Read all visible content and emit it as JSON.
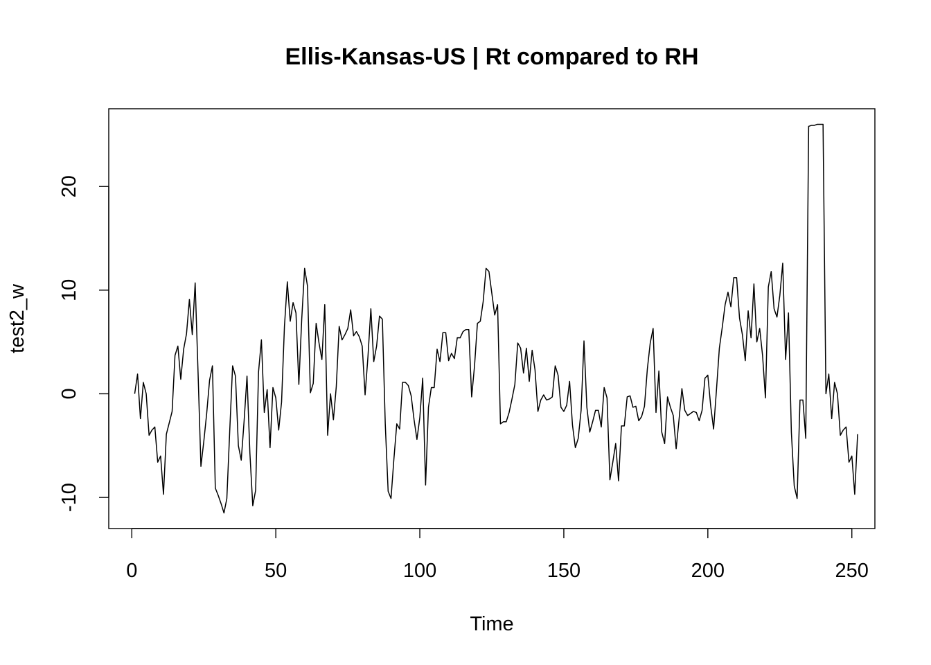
{
  "chart_data": {
    "type": "line",
    "title": "Ellis-Kansas-US | Rt compared to RH",
    "xlabel": "Time",
    "ylabel": "test2_w",
    "xlim": [
      -8,
      258
    ],
    "ylim": [
      -13,
      27.5
    ],
    "xticks": [
      0,
      50,
      100,
      150,
      200,
      250
    ],
    "yticks": [
      -10,
      0,
      10,
      20
    ],
    "grid": false,
    "legend": "none",
    "line_color": "#000000",
    "series": [
      {
        "values": [
          0.0,
          1.9,
          -2.4,
          1.1,
          0.0,
          -4.0,
          -3.5,
          -3.2,
          -6.6,
          -6.0,
          -9.7,
          -3.9,
          -2.8,
          -1.7,
          3.7,
          4.6,
          1.4,
          4.3,
          5.8,
          9.1,
          5.7,
          10.7,
          2.1,
          -7.0,
          -4.6,
          -1.9,
          1.3,
          2.7,
          -9.1,
          -9.8,
          -10.6,
          -11.5,
          -10.1,
          -3.6,
          2.7,
          1.7,
          -5.0,
          -6.4,
          -2.6,
          1.7,
          -5.7,
          -10.8,
          -9.3,
          2.1,
          5.2,
          -1.8,
          0.4,
          -5.2,
          0.6,
          -0.4,
          -3.5,
          -0.8,
          6.5,
          10.8,
          7.0,
          8.8,
          7.8,
          0.9,
          7.2,
          12.1,
          10.4,
          0.1,
          1.0,
          6.8,
          4.9,
          3.3,
          8.6,
          -4.0,
          0.0,
          -2.5,
          0.7,
          6.5,
          5.2,
          5.7,
          6.3,
          8.1,
          5.6,
          6.0,
          5.5,
          4.6,
          -0.1,
          3.6,
          8.2,
          3.1,
          4.6,
          7.5,
          7.2,
          -2.9,
          -9.4,
          -10.1,
          -6.3,
          -2.9,
          -3.4,
          1.1,
          1.1,
          0.8,
          -0.2,
          -2.5,
          -4.4,
          -2.3,
          1.5,
          -8.8,
          -1.3,
          0.6,
          0.6,
          4.3,
          3.1,
          5.9,
          5.9,
          3.2,
          3.9,
          3.4,
          5.4,
          5.4,
          6.0,
          6.2,
          6.2,
          -0.3,
          2.7,
          6.8,
          7.0,
          8.9,
          12.1,
          11.8,
          9.7,
          7.6,
          8.6,
          -2.9,
          -2.7,
          -2.7,
          -1.8,
          -0.5,
          0.9,
          4.9,
          4.4,
          2.0,
          4.4,
          1.2,
          4.2,
          2.3,
          -1.7,
          -0.6,
          -0.1,
          -0.6,
          -0.5,
          -0.3,
          2.7,
          1.8,
          -1.3,
          -1.7,
          -1.1,
          1.2,
          -3.0,
          -5.2,
          -4.3,
          -1.6,
          5.1,
          -1.3,
          -3.7,
          -2.7,
          -1.6,
          -1.6,
          -3.2,
          0.6,
          -0.4,
          -8.3,
          -6.6,
          -4.8,
          -8.4,
          -3.1,
          -3.1,
          -0.3,
          -0.2,
          -1.3,
          -1.2,
          -2.6,
          -2.2,
          -1.2,
          2.4,
          4.9,
          6.3,
          -1.8,
          2.2,
          -3.7,
          -4.8,
          -0.3,
          -1.3,
          -2.1,
          -5.3,
          -2.5,
          0.5,
          -1.6,
          -2.1,
          -1.9,
          -1.7,
          -1.8,
          -2.6,
          -1.6,
          1.5,
          1.8,
          -1.2,
          -3.4,
          0.4,
          4.4,
          6.4,
          8.6,
          9.8,
          8.4,
          11.2,
          11.2,
          7.3,
          5.7,
          3.2,
          8.0,
          5.4,
          10.6,
          5.0,
          6.3,
          3.7,
          -0.4,
          10.3,
          11.8,
          8.2,
          7.4,
          9.5,
          12.6,
          3.3,
          7.8,
          -3.7,
          -8.9,
          -10.1,
          -0.6,
          -0.6,
          -4.3,
          25.8,
          25.9,
          25.9,
          26.0,
          26.0,
          26.0,
          0.0,
          1.9,
          -2.4,
          1.1,
          0.0,
          -4.0,
          -3.5,
          -3.2,
          -6.6,
          -6.0,
          -9.7,
          -3.9
        ]
      }
    ]
  }
}
